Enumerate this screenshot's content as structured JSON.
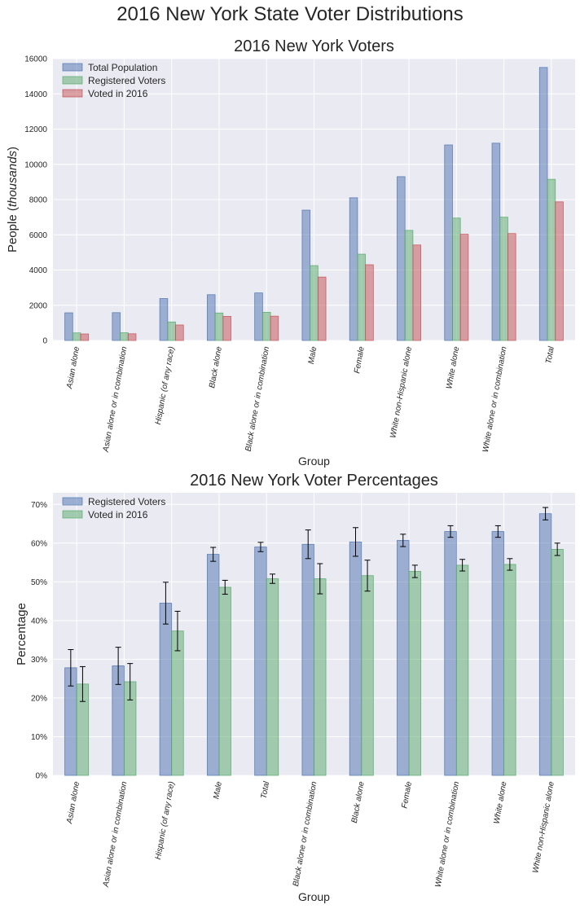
{
  "figure_title": "2016 New York State Voter Distributions",
  "chart_data": [
    {
      "type": "bar",
      "title": "2016 New York Voters",
      "xlabel": "Group",
      "ylabel_main": "People (",
      "ylabel_italic": "thousands",
      "ylabel_end": ")",
      "ylim": [
        0,
        16000
      ],
      "yticks": [
        0,
        2000,
        4000,
        6000,
        8000,
        10000,
        12000,
        14000,
        16000
      ],
      "grid": true,
      "legend_position": "top-left",
      "categories": [
        "Asian alone",
        "Asian alone or in combination",
        "Hispanic (of any race)",
        "Black alone",
        "Black alone or in combination",
        "Male",
        "Female",
        "White non-Hispanic alone",
        "White alone",
        "White alone or in combination",
        "Total"
      ],
      "series": [
        {
          "name": "Total Population",
          "color": "#4c72b0",
          "values": [
            1570,
            1580,
            2380,
            2600,
            2700,
            7400,
            8100,
            9300,
            11100,
            11200,
            15500
          ]
        },
        {
          "name": "Registered Voters",
          "color": "#55a868",
          "values": [
            430,
            440,
            1050,
            1560,
            1600,
            4250,
            4900,
            6250,
            6950,
            7000,
            9150
          ]
        },
        {
          "name": "Voted in 2016",
          "color": "#c44e52",
          "values": [
            370,
            380,
            880,
            1370,
            1380,
            3600,
            4300,
            5420,
            6030,
            6070,
            7870
          ]
        }
      ]
    },
    {
      "type": "bar",
      "title": "2016 New York Voter Percentages",
      "xlabel": "Group",
      "ylabel": "Percentage",
      "ylim": [
        0,
        73
      ],
      "yticks": [
        0,
        10,
        20,
        30,
        40,
        50,
        60,
        70
      ],
      "ytick_suffix": "%",
      "grid": true,
      "legend_position": "top-left",
      "categories": [
        "Asian alone",
        "Asian alone or in combination",
        "Hispanic (of any race)",
        "Male",
        "Total",
        "Black alone or in combination",
        "Black alone",
        "Female",
        "White alone or in combination",
        "White alone",
        "White non-Hispanic alone"
      ],
      "series": [
        {
          "name": "Registered Voters",
          "color": "#4c72b0",
          "values": [
            27.8,
            28.3,
            44.5,
            57.1,
            59.0,
            59.7,
            60.3,
            60.7,
            63.0,
            63.0,
            67.6
          ],
          "errors": [
            4.7,
            4.8,
            5.4,
            1.8,
            1.2,
            3.7,
            3.7,
            1.6,
            1.5,
            1.5,
            1.6
          ]
        },
        {
          "name": "Voted in 2016",
          "color": "#55a868",
          "values": [
            23.6,
            24.2,
            37.3,
            48.6,
            50.8,
            50.8,
            51.6,
            52.7,
            54.3,
            54.5,
            58.4
          ],
          "errors": [
            4.5,
            4.7,
            5.1,
            1.8,
            1.2,
            3.9,
            4.0,
            1.6,
            1.5,
            1.5,
            1.6
          ]
        }
      ]
    }
  ]
}
